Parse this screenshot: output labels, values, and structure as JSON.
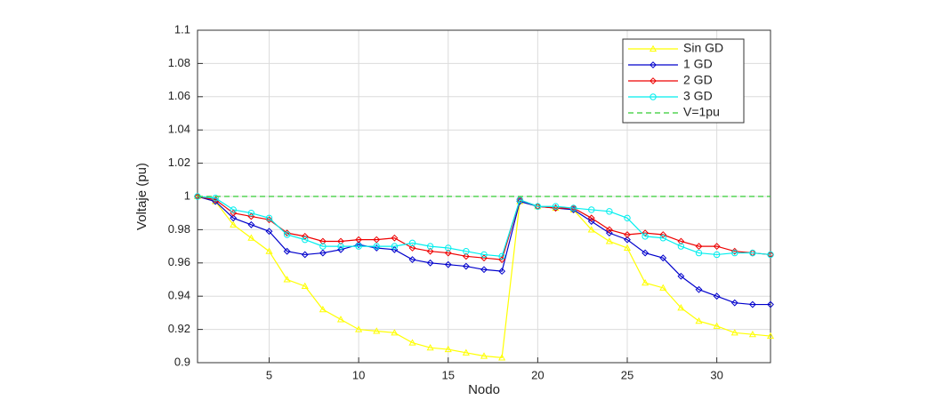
{
  "chart_data": {
    "type": "line",
    "xlabel": "Nodo",
    "ylabel": "Voltaje (pu)",
    "x": [
      1,
      2,
      3,
      4,
      5,
      6,
      7,
      8,
      9,
      10,
      11,
      12,
      13,
      14,
      15,
      16,
      17,
      18,
      19,
      20,
      21,
      22,
      23,
      24,
      25,
      26,
      27,
      28,
      29,
      30,
      31,
      32,
      33
    ],
    "xlim": [
      1,
      33
    ],
    "ylim": [
      0.9,
      1.1
    ],
    "xticks": [
      5,
      10,
      15,
      20,
      25,
      30
    ],
    "yticks": [
      0.9,
      0.92,
      0.94,
      0.96,
      0.98,
      1,
      1.02,
      1.04,
      1.06,
      1.08,
      1.1
    ],
    "grid": true,
    "legend": "upper right",
    "series": [
      {
        "name": "Sin GD",
        "color": "#ffff00",
        "marker": "triangle",
        "values": [
          1,
          0.997,
          0.983,
          0.975,
          0.967,
          0.95,
          0.946,
          0.932,
          0.926,
          0.92,
          0.919,
          0.918,
          0.912,
          0.909,
          0.908,
          0.906,
          0.904,
          0.903,
          0.997,
          0.994,
          0.993,
          0.992,
          0.98,
          0.973,
          0.969,
          0.948,
          0.945,
          0.933,
          0.925,
          0.922,
          0.918,
          0.917,
          0.916
        ]
      },
      {
        "name": "1 GD",
        "color": "#0000cc",
        "marker": "diamond",
        "values": [
          1,
          0.997,
          0.987,
          0.983,
          0.979,
          0.967,
          0.965,
          0.966,
          0.968,
          0.971,
          0.969,
          0.968,
          0.962,
          0.96,
          0.959,
          0.958,
          0.956,
          0.955,
          0.997,
          0.994,
          0.993,
          0.992,
          0.985,
          0.978,
          0.974,
          0.966,
          0.963,
          0.952,
          0.944,
          0.94,
          0.936,
          0.935,
          0.935
        ]
      },
      {
        "name": "2 GD",
        "color": "#ee0000",
        "marker": "diamond",
        "values": [
          1,
          0.998,
          0.99,
          0.988,
          0.986,
          0.978,
          0.976,
          0.973,
          0.973,
          0.974,
          0.974,
          0.975,
          0.969,
          0.967,
          0.966,
          0.964,
          0.963,
          0.962,
          0.998,
          0.994,
          0.993,
          0.993,
          0.987,
          0.98,
          0.977,
          0.978,
          0.977,
          0.973,
          0.97,
          0.97,
          0.967,
          0.966,
          0.965
        ]
      },
      {
        "name": "3 GD",
        "color": "#00eeee",
        "marker": "circle",
        "values": [
          1,
          0.999,
          0.992,
          0.99,
          0.987,
          0.977,
          0.974,
          0.97,
          0.97,
          0.97,
          0.97,
          0.97,
          0.972,
          0.97,
          0.969,
          0.967,
          0.965,
          0.964,
          0.998,
          0.994,
          0.994,
          0.993,
          0.992,
          0.991,
          0.987,
          0.976,
          0.975,
          0.97,
          0.966,
          0.965,
          0.966,
          0.966,
          0.965
        ]
      },
      {
        "name": "V=1pu",
        "color": "#33cc33",
        "dash": true,
        "values": [
          1,
          1,
          1,
          1,
          1,
          1,
          1,
          1,
          1,
          1,
          1,
          1,
          1,
          1,
          1,
          1,
          1,
          1,
          1,
          1,
          1,
          1,
          1,
          1,
          1,
          1,
          1,
          1,
          1,
          1,
          1,
          1,
          1
        ]
      }
    ]
  }
}
